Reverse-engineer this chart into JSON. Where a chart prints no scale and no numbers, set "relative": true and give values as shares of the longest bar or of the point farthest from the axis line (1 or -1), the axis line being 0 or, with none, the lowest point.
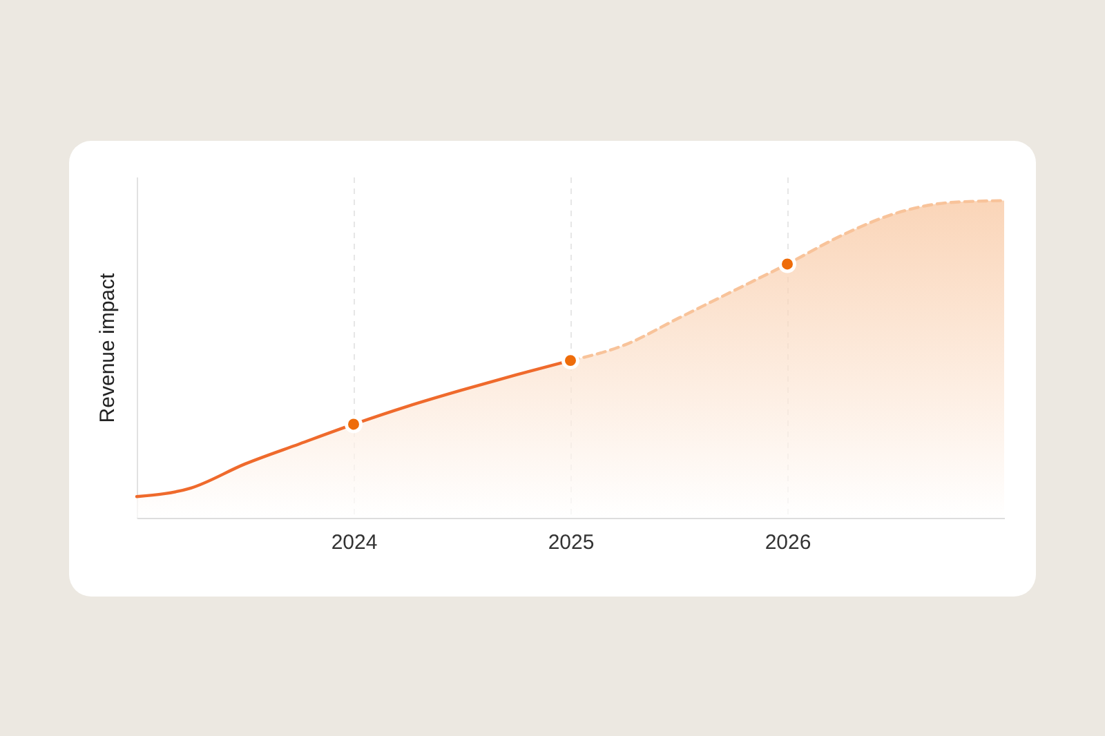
{
  "chart_data": {
    "type": "area",
    "ylabel": "Revenue impact",
    "relative": true,
    "xlim": [
      2023,
      2027
    ],
    "xticks": [
      2024,
      2025,
      2026
    ],
    "grid": "x",
    "series": [
      {
        "color": "#ef6a2c",
        "line_style": "solid",
        "x": [
          2023,
          2023.25,
          2023.5,
          2023.75,
          2024,
          2024.25,
          2024.5,
          2024.75,
          2025
        ],
        "values": [
          0.067,
          0.094,
          0.17,
          0.233,
          0.295,
          0.352,
          0.403,
          0.451,
          0.496
        ]
      },
      {
        "color": "#f8c39a",
        "line_style": "dashed",
        "x": [
          2025,
          2025.25,
          2025.5,
          2025.75,
          2026,
          2026.25,
          2026.5,
          2026.75,
          2027
        ],
        "values": [
          0.496,
          0.545,
          0.63,
          0.715,
          0.8,
          0.89,
          0.96,
          0.994,
          1.0
        ]
      },
      {
        "type": "scatter",
        "color": "#ee6c0a",
        "marker": "circle",
        "x": [
          2024,
          2025,
          2026
        ],
        "values": [
          0.295,
          0.496,
          0.8
        ]
      }
    ]
  }
}
